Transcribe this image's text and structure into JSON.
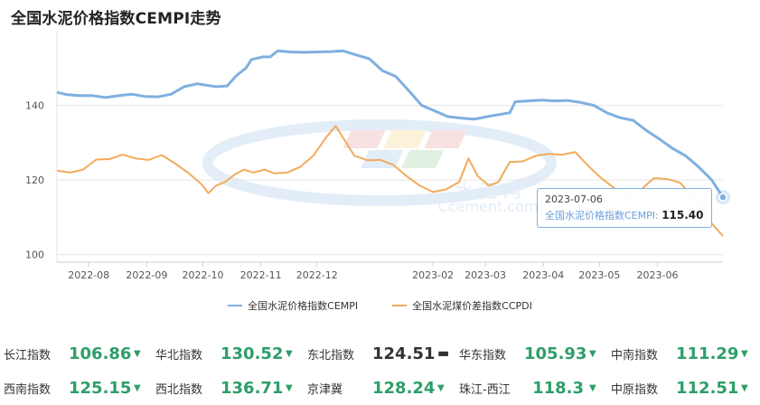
{
  "title": "全国水泥价格指数CEMPI走势",
  "chart_data": {
    "type": "line",
    "title": "全国水泥价格指数CEMPI走势",
    "xlabel": "",
    "ylabel": "",
    "x_ticks": [
      "2022-08",
      "2022-09",
      "2022-10",
      "2022-11",
      "2022-12",
      "2023-02",
      "2023-03",
      "2023-04",
      "2023-05",
      "2023-06"
    ],
    "y_ticks": [
      100,
      120,
      140
    ],
    "ylim": [
      98,
      160
    ],
    "grid": "horizontal",
    "legend_position": "bottom",
    "series": [
      {
        "name": "全国水泥价格指数CEMPI",
        "color": "#7fb0e0",
        "points": [
          [
            "2022-07-15",
            143.5
          ],
          [
            "2022-07-20",
            142.9
          ],
          [
            "2022-07-27",
            142.6
          ],
          [
            "2022-08-03",
            142.6
          ],
          [
            "2022-08-10",
            142.1
          ],
          [
            "2022-08-17",
            142.6
          ],
          [
            "2022-08-24",
            143.0
          ],
          [
            "2022-08-31",
            142.4
          ],
          [
            "2022-09-07",
            142.3
          ],
          [
            "2022-09-14",
            143.0
          ],
          [
            "2022-09-21",
            145.0
          ],
          [
            "2022-09-28",
            145.8
          ],
          [
            "2022-10-03",
            145.4
          ],
          [
            "2022-10-08",
            145.0
          ],
          [
            "2022-10-14",
            145.2
          ],
          [
            "2022-10-19",
            148.0
          ],
          [
            "2022-10-24",
            150.0
          ],
          [
            "2022-10-27",
            152.3
          ],
          [
            "2022-11-02",
            153.0
          ],
          [
            "2022-11-06",
            153.0
          ],
          [
            "2022-11-10",
            154.6
          ],
          [
            "2022-11-17",
            154.3
          ],
          [
            "2022-11-24",
            154.2
          ],
          [
            "2022-12-01",
            154.3
          ],
          [
            "2022-12-08",
            154.4
          ],
          [
            "2022-12-15",
            154.6
          ],
          [
            "2022-12-22",
            153.5
          ],
          [
            "2022-12-29",
            152.5
          ],
          [
            "2023-01-05",
            149.3
          ],
          [
            "2023-01-12",
            147.8
          ],
          [
            "2023-01-19",
            144.0
          ],
          [
            "2023-01-26",
            140.0
          ],
          [
            "2023-02-02",
            138.5
          ],
          [
            "2023-02-09",
            137.0
          ],
          [
            "2023-02-16",
            136.6
          ],
          [
            "2023-02-23",
            136.3
          ],
          [
            "2023-03-02",
            137.0
          ],
          [
            "2023-03-09",
            137.6
          ],
          [
            "2023-03-14",
            138.0
          ],
          [
            "2023-03-17",
            141.0
          ],
          [
            "2023-03-24",
            141.2
          ],
          [
            "2023-03-31",
            141.4
          ],
          [
            "2023-04-07",
            141.2
          ],
          [
            "2023-04-14",
            141.3
          ],
          [
            "2023-04-21",
            140.8
          ],
          [
            "2023-04-28",
            140.0
          ],
          [
            "2023-05-05",
            138.0
          ],
          [
            "2023-05-12",
            136.7
          ],
          [
            "2023-05-19",
            136.0
          ],
          [
            "2023-05-26",
            133.3
          ],
          [
            "2023-06-02",
            131.0
          ],
          [
            "2023-06-09",
            128.5
          ],
          [
            "2023-06-16",
            126.5
          ],
          [
            "2023-06-23",
            123.5
          ],
          [
            "2023-06-30",
            120.0
          ],
          [
            "2023-07-06",
            115.4
          ]
        ]
      },
      {
        "name": "全国水泥煤价差指数CCPDI",
        "color": "#f2ab5c",
        "points": [
          [
            "2022-07-15",
            122.5
          ],
          [
            "2022-07-22",
            122.0
          ],
          [
            "2022-07-29",
            122.8
          ],
          [
            "2022-08-05",
            125.5
          ],
          [
            "2022-08-12",
            125.6
          ],
          [
            "2022-08-19",
            126.8
          ],
          [
            "2022-08-26",
            125.8
          ],
          [
            "2022-09-02",
            125.4
          ],
          [
            "2022-09-09",
            126.7
          ],
          [
            "2022-09-16",
            124.5
          ],
          [
            "2022-09-23",
            122.0
          ],
          [
            "2022-09-30",
            119.0
          ],
          [
            "2022-10-04",
            116.5
          ],
          [
            "2022-10-08",
            118.5
          ],
          [
            "2022-10-13",
            119.5
          ],
          [
            "2022-10-18",
            121.5
          ],
          [
            "2022-10-23",
            122.8
          ],
          [
            "2022-10-28",
            122.0
          ],
          [
            "2022-11-03",
            122.8
          ],
          [
            "2022-11-08",
            121.8
          ],
          [
            "2022-11-15",
            122.0
          ],
          [
            "2022-11-22",
            123.5
          ],
          [
            "2022-11-29",
            126.5
          ],
          [
            "2022-12-06",
            131.5
          ],
          [
            "2022-12-11",
            134.5
          ],
          [
            "2022-12-16",
            130.5
          ],
          [
            "2022-12-21",
            126.5
          ],
          [
            "2022-12-28",
            125.3
          ],
          [
            "2023-01-04",
            125.4
          ],
          [
            "2023-01-11",
            124.0
          ],
          [
            "2023-01-18",
            121.0
          ],
          [
            "2023-01-25",
            118.5
          ],
          [
            "2023-02-01",
            116.8
          ],
          [
            "2023-02-08",
            117.5
          ],
          [
            "2023-02-15",
            119.5
          ],
          [
            "2023-02-20",
            125.8
          ],
          [
            "2023-02-25",
            121.0
          ],
          [
            "2023-03-03",
            118.5
          ],
          [
            "2023-03-08",
            119.5
          ],
          [
            "2023-03-14",
            124.8
          ],
          [
            "2023-03-21",
            125.0
          ],
          [
            "2023-03-28",
            126.5
          ],
          [
            "2023-04-04",
            127.0
          ],
          [
            "2023-04-11",
            126.8
          ],
          [
            "2023-04-18",
            127.5
          ],
          [
            "2023-04-25",
            123.8
          ],
          [
            "2023-05-02",
            120.5
          ],
          [
            "2023-05-09",
            117.8
          ],
          [
            "2023-05-16",
            115.8
          ],
          [
            "2023-05-23",
            117.3
          ],
          [
            "2023-05-30",
            120.5
          ],
          [
            "2023-06-06",
            120.3
          ],
          [
            "2023-06-13",
            119.3
          ],
          [
            "2023-06-20",
            115.5
          ],
          [
            "2023-06-27",
            110.0
          ],
          [
            "2023-07-06",
            105.0
          ]
        ]
      }
    ],
    "tooltip": {
      "date": "2023-07-06",
      "series": "全国水泥价格指数CEMPI",
      "value": "115.40"
    }
  },
  "legend": [
    {
      "label": "全国水泥价格指数CEMPI",
      "color": "#7fb0e0"
    },
    {
      "label": "全国水泥煤价差指数CCPDI",
      "color": "#f2ab5c"
    }
  ],
  "watermark": {
    "line1": "水 泥 网",
    "line2": "Ccement.com"
  },
  "indices": [
    [
      {
        "name": "长江指数",
        "value": "106.86",
        "trend": "down"
      },
      {
        "name": "华北指数",
        "value": "130.52",
        "trend": "down"
      },
      {
        "name": "东北指数",
        "value": "124.51",
        "trend": "flat"
      },
      {
        "name": "华东指数",
        "value": "105.93",
        "trend": "down"
      },
      {
        "name": "中南指数",
        "value": "111.29",
        "trend": "down"
      }
    ],
    [
      {
        "name": "西南指数",
        "value": "125.15",
        "trend": "down"
      },
      {
        "name": "西北指数",
        "value": "136.71",
        "trend": "down"
      },
      {
        "name": "京津冀",
        "value": "128.24",
        "trend": "down"
      },
      {
        "name": "珠江-西江",
        "value": "118.3",
        "trend": "down"
      },
      {
        "name": "中原指数",
        "value": "112.51",
        "trend": "down"
      }
    ]
  ],
  "trend_symbols": {
    "down": "▼",
    "flat": "▬"
  }
}
